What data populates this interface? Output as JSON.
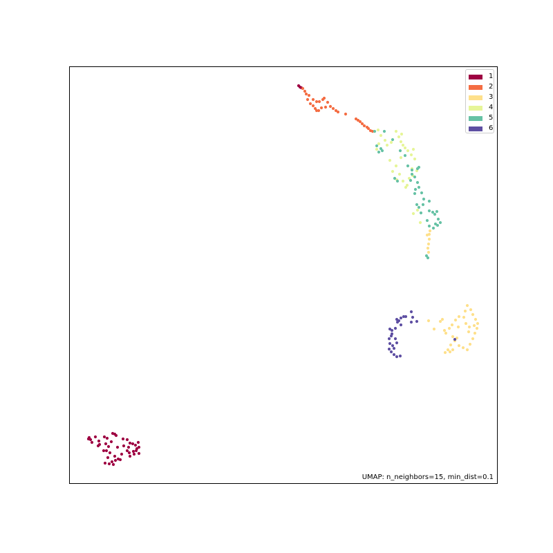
{
  "chart_data": {
    "type": "scatter",
    "title": "",
    "xlabel": "",
    "ylabel": "",
    "xticks": "none",
    "yticks": "none",
    "grid": false,
    "legend_placement": "top-right",
    "annotation": "UMAP: n_neighbors=15, min_dist=0.1",
    "series": [
      {
        "name": "1",
        "color": "#9e0142",
        "points": [
          [
            432,
            124
          ],
          [
            434,
            126
          ],
          [
            436,
            127
          ],
          [
            129,
            633
          ],
          [
            131,
            636
          ],
          [
            128,
            635
          ],
          [
            138,
            632
          ],
          [
            143,
            638
          ],
          [
            144,
            643
          ],
          [
            151,
            632
          ],
          [
            155,
            634
          ],
          [
            163,
            627
          ],
          [
            166,
            628
          ],
          [
            168,
            630
          ],
          [
            153,
            642
          ],
          [
            157,
            646
          ],
          [
            154,
            652
          ],
          [
            159,
            655
          ],
          [
            156,
            662
          ],
          [
            162,
            668
          ],
          [
            167,
            666
          ],
          [
            171,
            664
          ],
          [
            174,
            665
          ],
          [
            158,
            671
          ],
          [
            152,
            670
          ],
          [
            178,
            635
          ],
          [
            184,
            636
          ],
          [
            188,
            641
          ],
          [
            192,
            642
          ],
          [
            196,
            644
          ],
          [
            200,
            640
          ],
          [
            186,
            647
          ],
          [
            184,
            652
          ],
          [
            187,
            655
          ],
          [
            193,
            653
          ],
          [
            198,
            649
          ],
          [
            201,
            647
          ],
          [
            194,
            657
          ],
          [
            188,
            660
          ],
          [
            179,
            645
          ],
          [
            133,
            640
          ],
          [
            142,
            645
          ],
          [
            161,
            639
          ],
          [
            170,
            647
          ],
          [
            176,
            657
          ],
          [
            166,
            660
          ],
          [
            150,
            652
          ],
          [
            197,
            652
          ],
          [
            201,
            656
          ],
          [
            164,
            672
          ]
        ]
      },
      {
        "name": "2",
        "color": "#f46d43",
        "points": [
          [
            438,
            128
          ],
          [
            441,
            132
          ],
          [
            443,
            136
          ],
          [
            447,
            138
          ],
          [
            445,
            144
          ],
          [
            449,
            150
          ],
          [
            453,
            153
          ],
          [
            456,
            157
          ],
          [
            461,
            160
          ],
          [
            465,
            156
          ],
          [
            467,
            144
          ],
          [
            469,
            142
          ],
          [
            462,
            147
          ],
          [
            458,
            147
          ],
          [
            453,
            144
          ],
          [
            471,
            155
          ],
          [
            478,
            154
          ],
          [
            482,
            157
          ],
          [
            486,
            160
          ],
          [
            489,
            162
          ],
          [
            500,
            165
          ],
          [
            515,
            172
          ],
          [
            518,
            174
          ],
          [
            521,
            176
          ],
          [
            524,
            179
          ],
          [
            527,
            182
          ],
          [
            533,
            186
          ],
          [
            536,
            189
          ],
          [
            458,
            160
          ],
          [
            474,
            148
          ],
          [
            531,
            184
          ],
          [
            539,
            190
          ]
        ]
      },
      {
        "name": "3",
        "color": "#fee08b",
        "points": [
          [
            676,
            442
          ],
          [
            681,
            448
          ],
          [
            684,
            455
          ],
          [
            688,
            462
          ],
          [
            691,
            468
          ],
          [
            686,
            471
          ],
          [
            679,
            473
          ],
          [
            674,
            468
          ],
          [
            671,
            459
          ],
          [
            673,
            450
          ],
          [
            664,
            458
          ],
          [
            659,
            463
          ],
          [
            654,
            470
          ],
          [
            650,
            475
          ],
          [
            645,
            482
          ],
          [
            643,
            478
          ],
          [
            628,
            476
          ],
          [
            620,
            464
          ],
          [
            640,
            462
          ],
          [
            655,
            487
          ],
          [
            658,
            493
          ],
          [
            652,
            499
          ],
          [
            648,
            506
          ],
          [
            644,
            510
          ],
          [
            651,
            509
          ],
          [
            655,
            506
          ],
          [
            664,
            500
          ],
          [
            670,
            503
          ],
          [
            676,
            506
          ],
          [
            680,
            498
          ],
          [
            684,
            490
          ],
          [
            687,
            482
          ],
          [
            690,
            475
          ],
          [
            678,
            480
          ],
          [
            661,
            489
          ],
          [
            637,
            465
          ],
          [
            621,
            346
          ],
          [
            620,
            353
          ],
          [
            619,
            359
          ],
          [
            620,
            365
          ],
          [
            621,
            339
          ],
          [
            622,
            334
          ],
          [
            618,
            340
          ],
          [
            663,
            473
          ]
        ]
      },
      {
        "name": "4",
        "color": "#e6f598",
        "points": [
          [
            547,
            188
          ],
          [
            551,
            196
          ],
          [
            557,
            203
          ],
          [
            560,
            210
          ],
          [
            566,
            206
          ],
          [
            573,
            190
          ],
          [
            577,
            198
          ],
          [
            580,
            205
          ],
          [
            583,
            210
          ],
          [
            586,
            214
          ],
          [
            590,
            218
          ],
          [
            595,
            224
          ],
          [
            598,
            216
          ],
          [
            600,
            230
          ],
          [
            580,
            228
          ],
          [
            573,
            240
          ],
          [
            568,
            248
          ],
          [
            578,
            252
          ],
          [
            583,
            262
          ],
          [
            589,
            268
          ],
          [
            592,
            258
          ],
          [
            597,
            254
          ],
          [
            603,
            247
          ],
          [
            548,
            208
          ],
          [
            545,
            216
          ],
          [
            581,
            194
          ],
          [
            564,
            232
          ],
          [
            574,
            260
          ],
          [
            596,
            244
          ],
          [
            604,
            304
          ],
          [
            598,
            309
          ],
          [
            587,
            271
          ],
          [
            608,
            322
          ]
        ]
      },
      {
        "name": "5",
        "color": "#66c2a5",
        "points": [
          [
            542,
            190
          ],
          [
            545,
            211
          ],
          [
            551,
            215
          ],
          [
            553,
            218
          ],
          [
            548,
            220
          ],
          [
            556,
            190
          ],
          [
            568,
            202
          ],
          [
            579,
            218
          ],
          [
            586,
            225
          ],
          [
            590,
            240
          ],
          [
            596,
            252
          ],
          [
            600,
            256
          ],
          [
            604,
            264
          ],
          [
            606,
            271
          ],
          [
            601,
            274
          ],
          [
            594,
            261
          ],
          [
            604,
            244
          ],
          [
            606,
            242
          ],
          [
            571,
            258
          ],
          [
            575,
            262
          ],
          [
            600,
            280
          ],
          [
            610,
            279
          ],
          [
            613,
            288
          ],
          [
            612,
            296
          ],
          [
            621,
            291
          ],
          [
            621,
            305
          ],
          [
            626,
            307
          ],
          [
            629,
            310
          ],
          [
            632,
            306
          ],
          [
            634,
            317
          ],
          [
            630,
            324
          ],
          [
            627,
            330
          ],
          [
            633,
            326
          ],
          [
            637,
            322
          ],
          [
            618,
            319
          ],
          [
            621,
            327
          ],
          [
            617,
            370
          ],
          [
            619,
            373
          ],
          [
            603,
            296
          ],
          [
            606,
            300
          ],
          [
            609,
            308
          ],
          [
            596,
            246
          ]
        ]
      },
      {
        "name": "6",
        "color": "#5e4fa2",
        "points": [
          [
            574,
            462
          ],
          [
            577,
            464
          ],
          [
            580,
            460
          ],
          [
            584,
            458
          ],
          [
            587,
            458
          ],
          [
            595,
            451
          ],
          [
            597,
            459
          ],
          [
            595,
            466
          ],
          [
            603,
            465
          ],
          [
            580,
            470
          ],
          [
            572,
            475
          ],
          [
            567,
            478
          ],
          [
            566,
            486
          ],
          [
            563,
            490
          ],
          [
            564,
            497
          ],
          [
            563,
            505
          ],
          [
            566,
            509
          ],
          [
            570,
            513
          ],
          [
            574,
            516
          ],
          [
            579,
            515
          ],
          [
            568,
            500
          ],
          [
            574,
            496
          ],
          [
            572,
            490
          ],
          [
            567,
            483
          ],
          [
            564,
            476
          ],
          [
            575,
            466
          ],
          [
            658,
            491
          ],
          [
            570,
            504
          ]
        ]
      }
    ]
  }
}
